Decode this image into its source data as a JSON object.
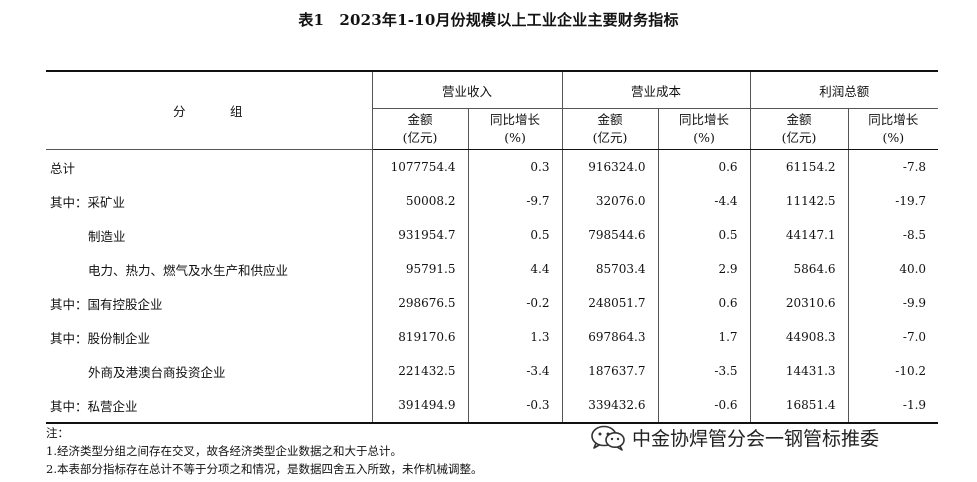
{
  "title": "表1　2023年1-10月份规模以上工业企业主要财务指标",
  "table": {
    "group_label": "分　组",
    "columns": [
      {
        "group": "营业收入",
        "sub": [
          {
            "line1": "金额",
            "line2": "(亿元)"
          },
          {
            "line1": "同比增长",
            "line2": "(%)"
          }
        ]
      },
      {
        "group": "营业成本",
        "sub": [
          {
            "line1": "金额",
            "line2": "(亿元)"
          },
          {
            "line1": "同比增长",
            "line2": "(%)"
          }
        ]
      },
      {
        "group": "利润总额",
        "sub": [
          {
            "line1": "金额",
            "line2": "(亿元)"
          },
          {
            "line1": "同比增长",
            "line2": "(%)"
          }
        ]
      }
    ],
    "rows": [
      {
        "label": "总计",
        "indent": false,
        "values": [
          "1077754.4",
          "0.3",
          "916324.0",
          "0.6",
          "61154.2",
          "-7.8"
        ]
      },
      {
        "label": "其中：采矿业",
        "indent": false,
        "values": [
          "50008.2",
          "-9.7",
          "32076.0",
          "-4.4",
          "11142.5",
          "-19.7"
        ]
      },
      {
        "label": "制造业",
        "indent": true,
        "values": [
          "931954.7",
          "0.5",
          "798544.6",
          "0.5",
          "44147.1",
          "-8.5"
        ]
      },
      {
        "label": "电力、热力、燃气及水生产和供应业",
        "indent": true,
        "values": [
          "95791.5",
          "4.4",
          "85703.4",
          "2.9",
          "5864.6",
          "40.0"
        ]
      },
      {
        "label": "其中：国有控股企业",
        "indent": false,
        "values": [
          "298676.5",
          "-0.2",
          "248051.7",
          "0.6",
          "20310.6",
          "-9.9"
        ]
      },
      {
        "label": "其中：股份制企业",
        "indent": false,
        "values": [
          "819170.6",
          "1.3",
          "697864.3",
          "1.7",
          "44908.3",
          "-7.0"
        ]
      },
      {
        "label": "外商及港澳台商投资企业",
        "indent": true,
        "values": [
          "221432.5",
          "-3.4",
          "187637.7",
          "-3.5",
          "14431.3",
          "-10.2"
        ]
      },
      {
        "label": "其中：私营企业",
        "indent": false,
        "values": [
          "391494.9",
          "-0.3",
          "339432.6",
          "-0.6",
          "16851.4",
          "-1.9"
        ]
      }
    ]
  },
  "notes": {
    "head": "注：",
    "items": [
      "1.经济类型分组之间存在交叉，故各经济类型企业数据之和大于总计。",
      "2.本表部分指标存在总计不等于分项之和情况，是数据四舍五入所致，未作机械调整。"
    ]
  },
  "watermark": {
    "text": "中金协焊管分会一钢管标推委",
    "icon": "wechat-icon"
  }
}
